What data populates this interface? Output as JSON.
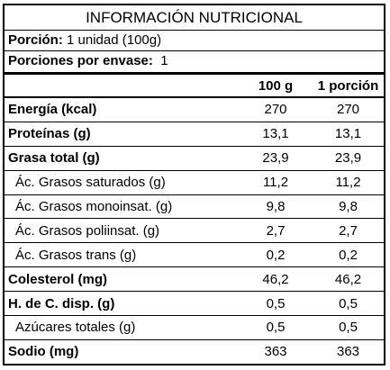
{
  "title": "INFORMACIÓN NUTRICIONAL",
  "portion": {
    "label": "Porción:",
    "value": "1 unidad (100g)"
  },
  "servings": {
    "label": "Porciones por envase:",
    "value": "1"
  },
  "columns": [
    "",
    "100 g",
    "1 porción"
  ],
  "rows": [
    {
      "name": "Energía (kcal)",
      "per100": "270",
      "perPortion": "270",
      "bold": true,
      "indent": false
    },
    {
      "name": "Proteínas (g)",
      "per100": "13,1",
      "perPortion": "13,1",
      "bold": true,
      "indent": false
    },
    {
      "name": "Grasa total (g)",
      "per100": "23,9",
      "perPortion": "23,9",
      "bold": true,
      "indent": false
    },
    {
      "name": "Ác. Grasos saturados (g)",
      "per100": "11,2",
      "perPortion": "11,2",
      "bold": false,
      "indent": true
    },
    {
      "name": "Ác. Grasos monoinsat. (g)",
      "per100": "9,8",
      "perPortion": "9,8",
      "bold": false,
      "indent": true
    },
    {
      "name": "Ác. Grasos poliinsat. (g)",
      "per100": "2,7",
      "perPortion": "2,7",
      "bold": false,
      "indent": true
    },
    {
      "name": "Ác. Grasos trans (g)",
      "per100": "0,2",
      "perPortion": "0,2",
      "bold": false,
      "indent": true
    },
    {
      "name": "Colesterol (mg)",
      "per100": "46,2",
      "perPortion": "46,2",
      "bold": true,
      "indent": false
    },
    {
      "name": "H. de C. disp. (g)",
      "per100": "0,5",
      "perPortion": "0,5",
      "bold": true,
      "indent": false
    },
    {
      "name": "Azúcares totales (g)",
      "per100": "0,5",
      "perPortion": "0,5",
      "bold": false,
      "indent": true
    },
    {
      "name": "Sodio (mg)",
      "per100": "363",
      "perPortion": "363",
      "bold": true,
      "indent": false
    }
  ]
}
